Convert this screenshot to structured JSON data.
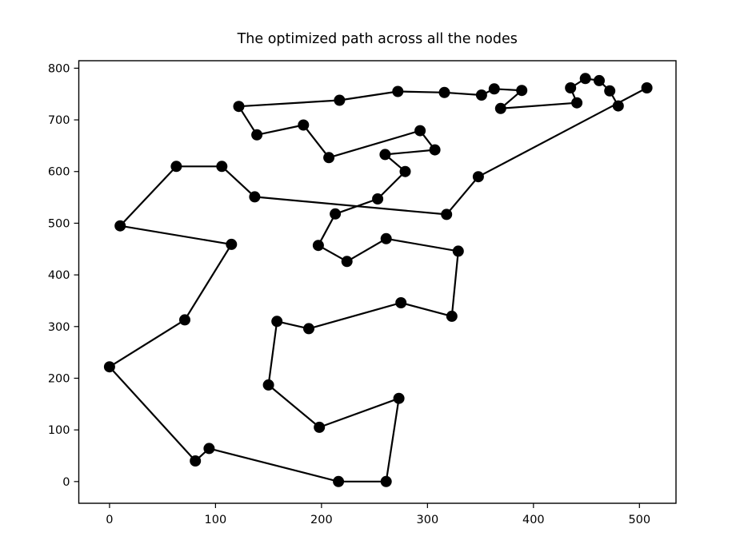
{
  "chart_data": {
    "type": "line",
    "title": "The optimized path across all the nodes",
    "xlabel": "",
    "ylabel": "",
    "line_color": "#000000",
    "marker_color": "#000000",
    "marker": "o",
    "background_color": "#ffffff",
    "grid": false,
    "legend_position": "none",
    "xlim": [
      -29,
      534.5
    ],
    "ylim": [
      -42,
      814.5
    ],
    "xticks": [
      0,
      100,
      200,
      300,
      400,
      500
    ],
    "yticks": [
      0,
      100,
      200,
      300,
      400,
      500,
      600,
      700,
      800
    ],
    "path_points": [
      [
        480,
        727
      ],
      [
        472,
        756
      ],
      [
        462,
        776
      ],
      [
        449,
        780
      ],
      [
        435,
        762
      ],
      [
        441,
        733
      ],
      [
        369,
        722
      ],
      [
        389,
        757
      ],
      [
        363,
        760
      ],
      [
        351,
        748
      ],
      [
        316,
        753
      ],
      [
        272,
        755
      ],
      [
        217,
        738
      ],
      [
        122,
        726
      ],
      [
        139,
        671
      ],
      [
        183,
        690
      ],
      [
        207,
        627
      ],
      [
        293,
        679
      ],
      [
        307,
        642
      ],
      [
        260,
        633
      ],
      [
        279,
        600
      ],
      [
        253,
        547
      ],
      [
        213,
        518
      ],
      [
        197,
        457
      ],
      [
        224,
        426
      ],
      [
        261,
        470
      ],
      [
        329,
        446
      ],
      [
        323,
        320
      ],
      [
        275,
        346
      ],
      [
        188,
        296
      ],
      [
        158,
        310
      ],
      [
        150,
        187
      ],
      [
        198,
        105
      ],
      [
        273,
        161
      ],
      [
        261,
        0
      ],
      [
        216,
        0
      ],
      [
        94,
        64
      ],
      [
        81,
        40
      ],
      [
        0,
        222
      ],
      [
        71,
        313
      ],
      [
        115,
        459
      ],
      [
        10,
        495
      ],
      [
        63,
        610
      ],
      [
        106,
        610
      ],
      [
        137,
        551
      ],
      [
        318,
        517
      ],
      [
        348,
        590
      ],
      [
        507,
        762
      ]
    ]
  }
}
